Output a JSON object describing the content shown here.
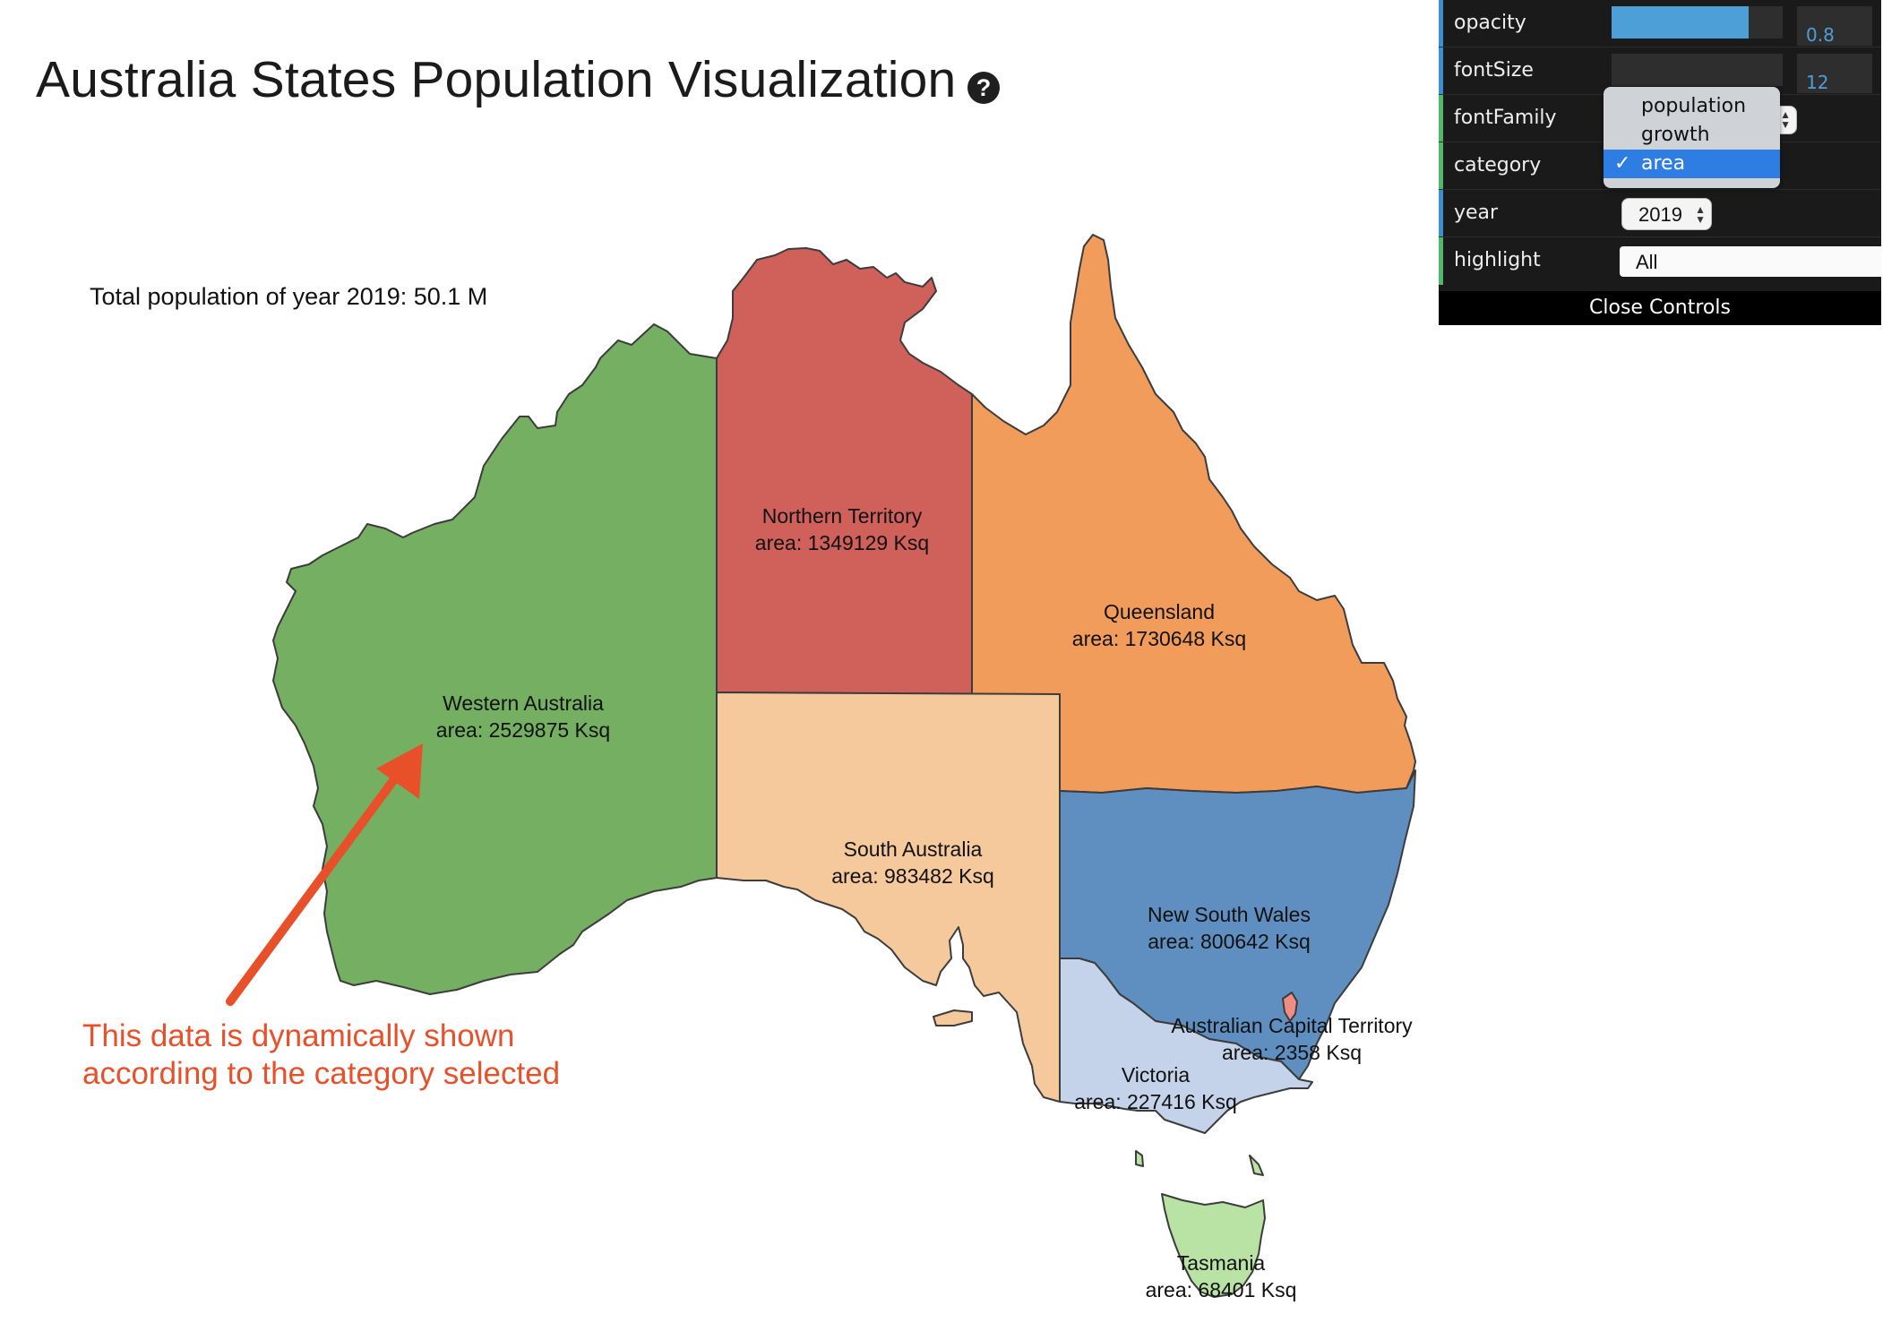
{
  "title": "Australia States Population Visualization",
  "help_icon": "?",
  "total_text": "Total population of year 2019: 50.1 M",
  "annotation": {
    "line1": "This data is dynamically shown",
    "line2": "according to the category selected"
  },
  "colors": {
    "western_australia": "#74af62",
    "northern_territory": "#d0605a",
    "queensland": "#f29c5c",
    "south_australia": "#f5c99b",
    "new_south_wales": "#5e8fc0",
    "victoria": "#c4d3ea",
    "act": "#f08c83",
    "tasmania": "#b9e2a5",
    "annotation": "#e8502a",
    "slider_fill": "#4d9fd8"
  },
  "regions": {
    "western_australia": {
      "name": "Western Australia",
      "value": "area: 2529875 Ksq"
    },
    "northern_territory": {
      "name": "Northern Territory",
      "value": "area: 1349129 Ksq"
    },
    "queensland": {
      "name": "Queensland",
      "value": "area: 1730648 Ksq"
    },
    "south_australia": {
      "name": "South Australia",
      "value": "area: 983482 Ksq"
    },
    "new_south_wales": {
      "name": "New South Wales",
      "value": "area: 800642 Ksq"
    },
    "act": {
      "name": "Australian Capital Territory",
      "value": "area: 2358 Ksq"
    },
    "victoria": {
      "name": "Victoria",
      "value": "area: 227416 Ksq"
    },
    "tasmania": {
      "name": "Tasmania",
      "value": "area: 68401 Ksq"
    }
  },
  "controls": {
    "opacity": {
      "label": "opacity",
      "value": "0.8",
      "level": 0.8
    },
    "fontSize": {
      "label": "fontSize",
      "value": "12"
    },
    "fontFamily": {
      "label": "fontFamily"
    },
    "category": {
      "label": "category",
      "options": [
        "population",
        "growth",
        "area"
      ],
      "selected": "area",
      "check": "✓"
    },
    "year": {
      "label": "year",
      "value": "2019"
    },
    "highlight": {
      "label": "highlight",
      "value": "All"
    },
    "close_label": "Close Controls"
  }
}
